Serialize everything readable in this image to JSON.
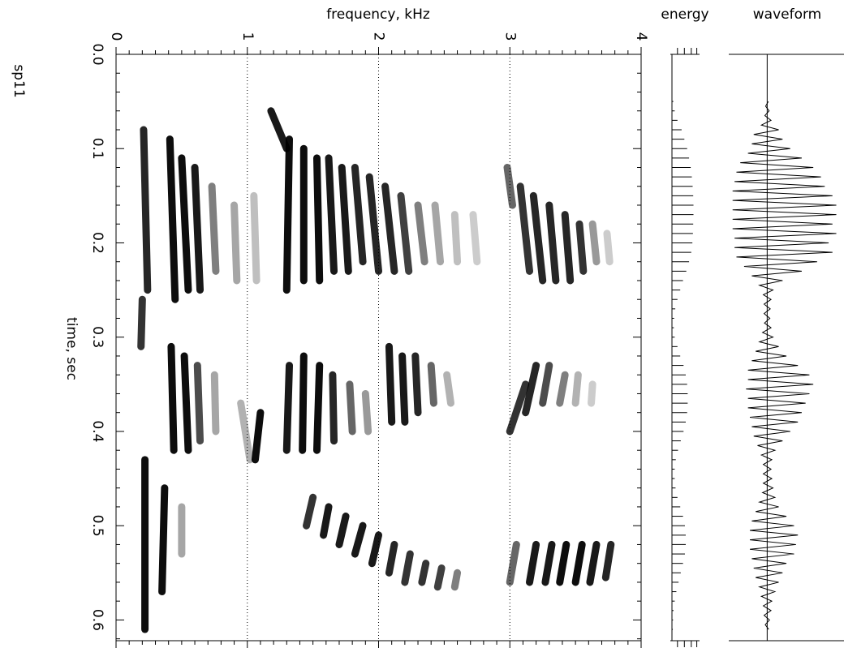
{
  "recording": "sp11",
  "chart_data": [
    {
      "type": "spectrogram",
      "x_label": "frequency,  kHz",
      "y_label": "time, sec",
      "color": "#000000",
      "grid": true,
      "xlim": [
        0,
        4
      ],
      "xticks": [
        0,
        1,
        2,
        3,
        4
      ],
      "xminorticks": [
        0.1,
        0.2,
        0.3,
        0.4,
        0.5,
        0.6,
        0.7,
        0.8,
        0.9,
        1.1,
        1.2,
        1.3,
        1.4,
        1.5,
        1.6,
        1.7,
        1.8,
        1.9,
        2.1,
        2.2,
        2.3,
        2.4,
        2.5,
        2.6,
        2.7,
        2.8,
        2.9,
        3.1,
        3.2,
        3.3,
        3.4,
        3.5,
        3.6,
        3.7,
        3.8,
        3.9
      ],
      "ylim": [
        0,
        0.622
      ],
      "yticks": [
        {
          "value": 0,
          "label": "0.0"
        },
        0.1,
        0.2,
        0.3,
        0.4,
        0.5,
        0.6
      ],
      "yminorticks": [
        0.02,
        0.04,
        0.06,
        0.08,
        0.12,
        0.14,
        0.16,
        0.18,
        0.22,
        0.24,
        0.26,
        0.28,
        0.32,
        0.34,
        0.36,
        0.38,
        0.42,
        0.44,
        0.46,
        0.48,
        0.52,
        0.54,
        0.56,
        0.58,
        0.62
      ],
      "streaks": [
        [
          0.08,
          0.25,
          0.21,
          0.24,
          0.85
        ],
        [
          0.09,
          0.26,
          0.41,
          0.45,
          0.95
        ],
        [
          0.11,
          0.25,
          0.5,
          0.55,
          0.95
        ],
        [
          0.12,
          0.25,
          0.6,
          0.64,
          0.9
        ],
        [
          0.14,
          0.23,
          0.73,
          0.76,
          0.5
        ],
        [
          0.16,
          0.24,
          0.9,
          0.92,
          0.35
        ],
        [
          0.15,
          0.24,
          1.05,
          1.07,
          0.25
        ],
        [
          0.06,
          0.1,
          1.18,
          1.3,
          0.9
        ],
        [
          0.09,
          0.25,
          1.32,
          1.3,
          0.95
        ],
        [
          0.1,
          0.24,
          1.43,
          1.43,
          0.95
        ],
        [
          0.11,
          0.24,
          1.53,
          1.55,
          0.95
        ],
        [
          0.11,
          0.23,
          1.62,
          1.66,
          0.9
        ],
        [
          0.12,
          0.23,
          1.72,
          1.77,
          0.9
        ],
        [
          0.12,
          0.22,
          1.82,
          1.88,
          0.85
        ],
        [
          0.13,
          0.23,
          1.93,
          2.0,
          0.85
        ],
        [
          0.14,
          0.23,
          2.05,
          2.12,
          0.85
        ],
        [
          0.15,
          0.23,
          2.17,
          2.23,
          0.75
        ],
        [
          0.16,
          0.22,
          2.3,
          2.35,
          0.5
        ],
        [
          0.16,
          0.22,
          2.43,
          2.47,
          0.35
        ],
        [
          0.17,
          0.22,
          2.58,
          2.6,
          0.25
        ],
        [
          0.17,
          0.22,
          2.72,
          2.75,
          0.2
        ],
        [
          0.12,
          0.16,
          2.98,
          3.02,
          0.6
        ],
        [
          0.14,
          0.23,
          3.08,
          3.15,
          0.8
        ],
        [
          0.15,
          0.24,
          3.18,
          3.25,
          0.85
        ],
        [
          0.16,
          0.24,
          3.3,
          3.35,
          0.85
        ],
        [
          0.17,
          0.24,
          3.42,
          3.46,
          0.85
        ],
        [
          0.18,
          0.23,
          3.53,
          3.56,
          0.8
        ],
        [
          0.18,
          0.22,
          3.63,
          3.66,
          0.4
        ],
        [
          0.19,
          0.22,
          3.74,
          3.76,
          0.2
        ],
        [
          0.26,
          0.31,
          0.2,
          0.19,
          0.8
        ],
        [
          0.31,
          0.42,
          0.42,
          0.44,
          0.95
        ],
        [
          0.32,
          0.42,
          0.52,
          0.55,
          0.95
        ],
        [
          0.33,
          0.41,
          0.62,
          0.64,
          0.7
        ],
        [
          0.34,
          0.4,
          0.75,
          0.76,
          0.35
        ],
        [
          0.37,
          0.43,
          0.95,
          1.02,
          0.3
        ],
        [
          0.38,
          0.43,
          1.1,
          1.06,
          0.95
        ],
        [
          0.33,
          0.42,
          1.32,
          1.3,
          0.9
        ],
        [
          0.32,
          0.42,
          1.43,
          1.42,
          0.95
        ],
        [
          0.33,
          0.42,
          1.55,
          1.53,
          0.95
        ],
        [
          0.34,
          0.41,
          1.65,
          1.66,
          0.85
        ],
        [
          0.35,
          0.4,
          1.78,
          1.8,
          0.6
        ],
        [
          0.36,
          0.4,
          1.9,
          1.92,
          0.4
        ],
        [
          0.31,
          0.39,
          2.08,
          2.1,
          0.9
        ],
        [
          0.32,
          0.39,
          2.18,
          2.2,
          0.9
        ],
        [
          0.32,
          0.38,
          2.28,
          2.3,
          0.85
        ],
        [
          0.33,
          0.37,
          2.4,
          2.42,
          0.6
        ],
        [
          0.34,
          0.37,
          2.52,
          2.55,
          0.3
        ],
        [
          0.35,
          0.4,
          3.12,
          3.0,
          0.8
        ],
        [
          0.33,
          0.38,
          3.2,
          3.12,
          0.85
        ],
        [
          0.33,
          0.37,
          3.3,
          3.25,
          0.7
        ],
        [
          0.34,
          0.37,
          3.42,
          3.38,
          0.5
        ],
        [
          0.34,
          0.37,
          3.52,
          3.5,
          0.3
        ],
        [
          0.35,
          0.37,
          3.63,
          3.62,
          0.2
        ],
        [
          0.43,
          0.61,
          0.22,
          0.22,
          0.95
        ],
        [
          0.46,
          0.57,
          0.37,
          0.35,
          0.95
        ],
        [
          0.48,
          0.53,
          0.5,
          0.5,
          0.35
        ],
        [
          0.47,
          0.5,
          1.5,
          1.45,
          0.8
        ],
        [
          0.48,
          0.51,
          1.62,
          1.58,
          0.9
        ],
        [
          0.49,
          0.52,
          1.75,
          1.7,
          0.9
        ],
        [
          0.5,
          0.53,
          1.88,
          1.82,
          0.9
        ],
        [
          0.51,
          0.54,
          2.0,
          1.95,
          0.9
        ],
        [
          0.52,
          0.55,
          2.12,
          2.08,
          0.85
        ],
        [
          0.53,
          0.56,
          2.24,
          2.2,
          0.8
        ],
        [
          0.54,
          0.56,
          2.36,
          2.33,
          0.8
        ],
        [
          0.545,
          0.565,
          2.48,
          2.45,
          0.75
        ],
        [
          0.55,
          0.565,
          2.6,
          2.58,
          0.5
        ],
        [
          0.52,
          0.56,
          3.05,
          3.0,
          0.6
        ],
        [
          0.52,
          0.56,
          3.2,
          3.15,
          0.9
        ],
        [
          0.52,
          0.56,
          3.32,
          3.27,
          0.9
        ],
        [
          0.52,
          0.56,
          3.43,
          3.38,
          0.95
        ],
        [
          0.52,
          0.56,
          3.55,
          3.5,
          0.95
        ],
        [
          0.52,
          0.56,
          3.66,
          3.61,
          0.9
        ],
        [
          0.52,
          0.555,
          3.77,
          3.73,
          0.85
        ]
      ]
    },
    {
      "type": "energy",
      "title": "energy",
      "color": "#000000",
      "xlim": [
        0,
        1
      ],
      "xticks": [
        0.2,
        0.45,
        0.7,
        0.9
      ],
      "x": [
        0.05,
        0.06,
        0.07,
        0.08,
        0.09,
        0.1,
        0.11,
        0.12,
        0.13,
        0.14,
        0.15,
        0.16,
        0.17,
        0.18,
        0.19,
        0.2,
        0.21,
        0.22,
        0.23,
        0.24,
        0.25,
        0.26,
        0.27,
        0.28,
        0.29,
        0.3,
        0.31,
        0.32,
        0.33,
        0.34,
        0.35,
        0.36,
        0.37,
        0.38,
        0.39,
        0.4,
        0.41,
        0.42,
        0.43,
        0.44,
        0.45,
        0.46,
        0.47,
        0.48,
        0.49,
        0.5,
        0.51,
        0.52,
        0.53,
        0.54,
        0.55,
        0.56,
        0.57,
        0.58,
        0.59,
        0.6,
        0.61
      ],
      "values": [
        0.05,
        0.1,
        0.2,
        0.35,
        0.45,
        0.55,
        0.62,
        0.68,
        0.72,
        0.75,
        0.77,
        0.78,
        0.78,
        0.77,
        0.76,
        0.74,
        0.7,
        0.62,
        0.52,
        0.4,
        0.3,
        0.2,
        0.12,
        0.08,
        0.07,
        0.1,
        0.2,
        0.3,
        0.42,
        0.5,
        0.55,
        0.57,
        0.57,
        0.55,
        0.5,
        0.42,
        0.32,
        0.22,
        0.14,
        0.1,
        0.1,
        0.13,
        0.2,
        0.3,
        0.4,
        0.47,
        0.5,
        0.5,
        0.47,
        0.4,
        0.32,
        0.24,
        0.16,
        0.1,
        0.06,
        0.04,
        0.03
      ]
    },
    {
      "type": "waveform",
      "title": "waveform",
      "color": "#000000",
      "xlim": [
        -1,
        2
      ],
      "x": [
        0.05,
        0.055,
        0.06,
        0.065,
        0.07,
        0.075,
        0.08,
        0.085,
        0.09,
        0.095,
        0.1,
        0.105,
        0.11,
        0.115,
        0.12,
        0.125,
        0.13,
        0.135,
        0.14,
        0.145,
        0.15,
        0.155,
        0.16,
        0.165,
        0.17,
        0.175,
        0.18,
        0.185,
        0.19,
        0.195,
        0.2,
        0.205,
        0.21,
        0.215,
        0.22,
        0.225,
        0.23,
        0.235,
        0.24,
        0.245,
        0.25,
        0.255,
        0.26,
        0.265,
        0.27,
        0.275,
        0.28,
        0.285,
        0.29,
        0.295,
        0.3,
        0.305,
        0.31,
        0.315,
        0.32,
        0.325,
        0.33,
        0.335,
        0.34,
        0.345,
        0.35,
        0.355,
        0.36,
        0.365,
        0.37,
        0.375,
        0.38,
        0.385,
        0.39,
        0.395,
        0.4,
        0.405,
        0.41,
        0.415,
        0.42,
        0.425,
        0.43,
        0.435,
        0.44,
        0.445,
        0.45,
        0.455,
        0.46,
        0.465,
        0.47,
        0.475,
        0.48,
        0.485,
        0.49,
        0.495,
        0.5,
        0.505,
        0.51,
        0.515,
        0.52,
        0.525,
        0.53,
        0.535,
        0.54,
        0.545,
        0.55,
        0.555,
        0.56,
        0.565,
        0.57,
        0.575,
        0.58,
        0.585,
        0.59,
        0.595,
        0.6,
        0.605,
        0.61
      ],
      "values": [
        0.03,
        -0.04,
        0.05,
        -0.06,
        0.1,
        -0.15,
        0.3,
        -0.35,
        0.4,
        -0.4,
        0.6,
        -0.5,
        0.9,
        -0.7,
        1.2,
        -0.8,
        1.4,
        -0.85,
        1.5,
        -0.9,
        1.7,
        -0.9,
        1.8,
        -0.9,
        1.8,
        -0.9,
        1.7,
        -0.9,
        1.8,
        -0.85,
        1.6,
        -0.85,
        1.7,
        -0.8,
        1.3,
        -0.6,
        0.9,
        -0.4,
        0.4,
        -0.2,
        0.15,
        -0.1,
        0.1,
        -0.08,
        0.08,
        -0.08,
        0.07,
        -0.07,
        0.1,
        -0.12,
        0.15,
        -0.2,
        0.3,
        -0.3,
        0.5,
        -0.4,
        0.8,
        -0.5,
        1.1,
        -0.5,
        1.2,
        -0.55,
        1.1,
        -0.5,
        1.0,
        -0.5,
        0.9,
        -0.45,
        0.8,
        -0.4,
        0.6,
        -0.35,
        0.4,
        -0.25,
        0.2,
        -0.15,
        0.12,
        -0.1,
        0.1,
        -0.1,
        0.12,
        -0.1,
        0.15,
        -0.12,
        0.2,
        -0.2,
        0.3,
        -0.3,
        0.5,
        -0.4,
        0.7,
        -0.45,
        0.8,
        -0.45,
        0.75,
        -0.45,
        0.7,
        -0.4,
        0.5,
        -0.35,
        0.4,
        -0.3,
        0.3,
        -0.2,
        0.2,
        -0.15,
        0.12,
        -0.1,
        0.1,
        -0.08,
        0.06,
        -0.05,
        0.04
      ]
    }
  ]
}
